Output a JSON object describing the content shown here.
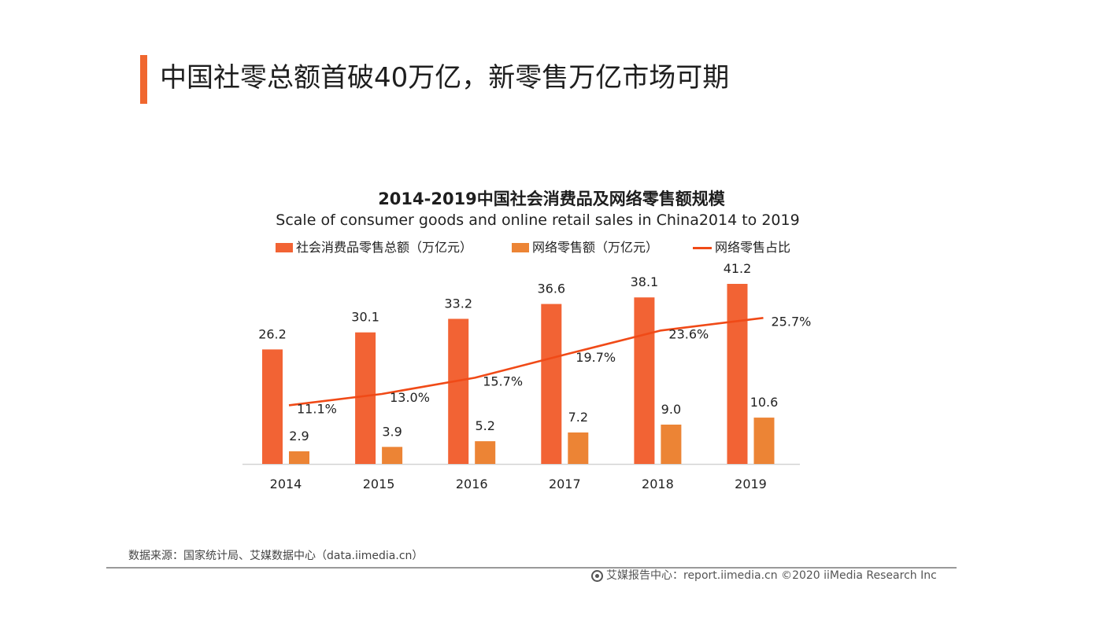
{
  "page": {
    "title": "中国社零总额首破40万亿，新零售万亿市场可期",
    "accent_color": "#f0672f"
  },
  "chart_data": {
    "type": "bar",
    "title": "2014-2019中国社会消费品及网络零售额规模",
    "subtitle": "Scale of consumer goods and online retail sales in China2014 to 2019",
    "categories": [
      "2014",
      "2015",
      "2016",
      "2017",
      "2018",
      "2019"
    ],
    "series": [
      {
        "name": "社会消费品零售总额（万亿元）",
        "type": "bar",
        "color": "#f26334",
        "values": [
          26.2,
          30.1,
          33.2,
          36.6,
          38.1,
          41.2
        ],
        "labels": [
          "26.2",
          "30.1",
          "33.2",
          "36.6",
          "38.1",
          "41.2"
        ]
      },
      {
        "name": "网络零售额（万亿元）",
        "type": "bar",
        "color": "#ec8435",
        "values": [
          2.9,
          3.9,
          5.2,
          7.2,
          9.0,
          10.6
        ],
        "labels": [
          "2.9",
          "3.9",
          "5.2",
          "7.2",
          "9.0",
          "10.6"
        ]
      },
      {
        "name": "网络零售占比",
        "type": "line",
        "color": "#f04a17",
        "unit": "%",
        "values": [
          11.1,
          13.0,
          15.7,
          19.7,
          23.6,
          25.7
        ],
        "labels": [
          "11.1%",
          "13.0%",
          "15.7%",
          "19.7%",
          "23.6%",
          "25.7%"
        ]
      }
    ],
    "ylim": [
      0,
      41.2
    ],
    "y2lim": [
      0,
      32
    ],
    "grid": false,
    "legend_position": "top"
  },
  "source": "数据来源：国家统计局、艾媒数据中心（data.iimedia.cn）",
  "footer": {
    "icon": "iimedia-logo-icon",
    "text": "艾媒报告中心：report.iimedia.cn ©2020 iiMedia Research Inc"
  }
}
